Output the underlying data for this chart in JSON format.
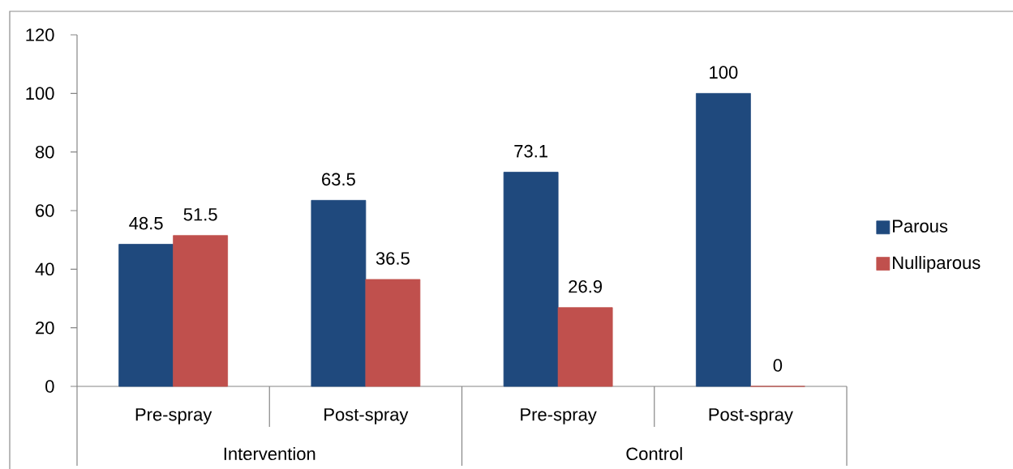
{
  "chart_data": {
    "type": "bar",
    "categories": [
      "Pre-spray",
      "Post-spray",
      "Pre-spray",
      "Post-spray"
    ],
    "series": [
      {
        "name": "Parous",
        "color": "#1f497d",
        "values": [
          48.5,
          63.5,
          73.1,
          100
        ]
      },
      {
        "name": "Nulliparous",
        "color": "#c0504d",
        "values": [
          51.5,
          36.5,
          26.9,
          0
        ]
      }
    ],
    "ylim": [
      0,
      120
    ],
    "yticks": [
      0,
      20,
      40,
      60,
      80,
      100,
      120
    ],
    "data_labels": true,
    "legend": "right",
    "annotations": [
      "Intervention",
      "Control"
    ]
  }
}
